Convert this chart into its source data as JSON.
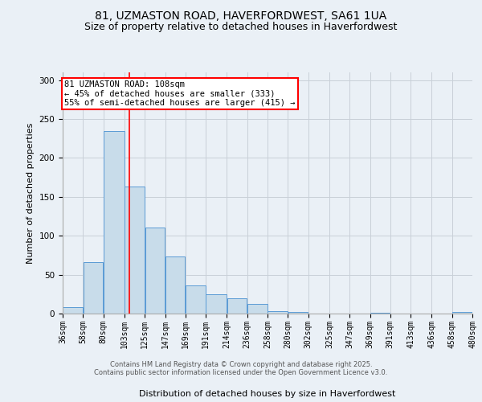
{
  "title_line1": "81, UZMASTON ROAD, HAVERFORDWEST, SA61 1UA",
  "title_line2": "Size of property relative to detached houses in Haverfordwest",
  "xlabel": "Distribution of detached houses by size in Haverfordwest",
  "ylabel": "Number of detached properties",
  "bar_color": "#c8dcea",
  "bar_edge_color": "#5b9bd5",
  "grid_color": "#c8d0d8",
  "vline_color": "red",
  "vline_x": 108,
  "annotation_text": "81 UZMASTON ROAD: 108sqm\n← 45% of detached houses are smaller (333)\n55% of semi-detached houses are larger (415) →",
  "annotation_box_color": "white",
  "annotation_box_edge": "red",
  "footer_line1": "Contains HM Land Registry data © Crown copyright and database right 2025.",
  "footer_line2": "Contains public sector information licensed under the Open Government Licence v3.0.",
  "bins": [
    36,
    58,
    80,
    103,
    125,
    147,
    169,
    191,
    214,
    236,
    258,
    280,
    302,
    325,
    347,
    369,
    391,
    413,
    436,
    458,
    480
  ],
  "values": [
    8,
    66,
    235,
    163,
    111,
    73,
    36,
    25,
    20,
    12,
    3,
    2,
    0,
    0,
    0,
    1,
    0,
    0,
    0,
    2
  ],
  "ylim": [
    0,
    310
  ],
  "yticks": [
    0,
    50,
    100,
    150,
    200,
    250,
    300
  ],
  "background_color": "#eaf0f6",
  "title_fontsize": 10,
  "subtitle_fontsize": 9,
  "tick_label_fontsize": 7,
  "axis_label_fontsize": 8,
  "annotation_fontsize": 7.5
}
